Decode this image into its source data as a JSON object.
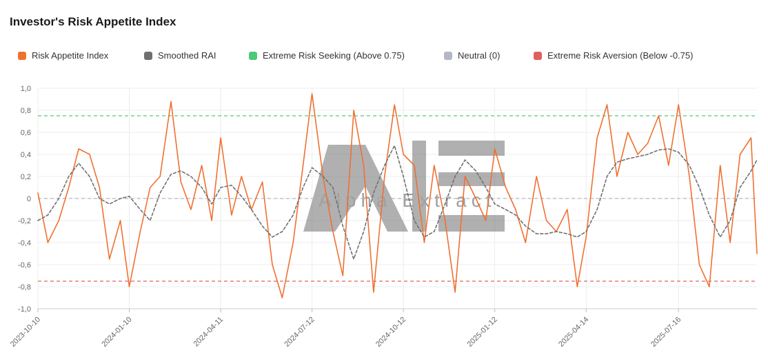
{
  "chart_data": {
    "type": "line",
    "title": "Investor's Risk Appetite Index",
    "xlabel": "",
    "ylabel": "",
    "ylim": [
      -1.0,
      1.0
    ],
    "grid": true,
    "legend_position": "top-left",
    "y_ticks": [
      "1,0",
      "0,8",
      "0,6",
      "0,4",
      "0,2",
      "0",
      "-0,2",
      "-0,4",
      "-0,6",
      "-0,8",
      "-1,0"
    ],
    "x_ticks": [
      "2023-10-10",
      "2024-01-10",
      "2024-04-11",
      "2024-07-12",
      "2024-10-12",
      "2025-01-12",
      "2025-04-14",
      "2025-07-16"
    ],
    "watermark": "Alpha Extract",
    "legend": [
      {
        "name": "Risk Appetite Index",
        "color": "#f07030"
      },
      {
        "name": "Smoothed RAI",
        "color": "#707070"
      },
      {
        "name": "Extreme Risk Seeking (Above 0.75)",
        "color": "#4cc97a"
      },
      {
        "name": "Neutral (0)",
        "color": "#b4b8c4"
      },
      {
        "name": "Extreme Risk Aversion (Below -0.75)",
        "color": "#e06060"
      }
    ],
    "thresholds": {
      "extreme_risk_seeking": 0.75,
      "neutral": 0,
      "extreme_risk_aversion": -0.75
    },
    "x": [
      "2023-10-10",
      "2023-10-20",
      "2023-10-31",
      "2023-11-10",
      "2023-11-20",
      "2023-12-01",
      "2023-12-11",
      "2023-12-21",
      "2024-01-01",
      "2024-01-10",
      "2024-01-21",
      "2024-01-31",
      "2024-02-10",
      "2024-02-21",
      "2024-03-02",
      "2024-03-12",
      "2024-03-23",
      "2024-04-02",
      "2024-04-11",
      "2024-04-22",
      "2024-05-02",
      "2024-05-12",
      "2024-05-23",
      "2024-06-02",
      "2024-06-12",
      "2024-06-23",
      "2024-07-03",
      "2024-07-12",
      "2024-07-23",
      "2024-08-02",
      "2024-08-12",
      "2024-08-23",
      "2024-09-02",
      "2024-09-12",
      "2024-09-23",
      "2024-10-03",
      "2024-10-12",
      "2024-10-23",
      "2024-11-02",
      "2024-11-12",
      "2024-11-23",
      "2024-12-03",
      "2024-12-13",
      "2024-12-24",
      "2025-01-03",
      "2025-01-12",
      "2025-01-23",
      "2025-02-02",
      "2025-02-12",
      "2025-02-23",
      "2025-03-05",
      "2025-03-15",
      "2025-03-26",
      "2025-04-05",
      "2025-04-14",
      "2025-04-25",
      "2025-05-05",
      "2025-05-15",
      "2025-05-26",
      "2025-06-05",
      "2025-06-15",
      "2025-06-26",
      "2025-07-06",
      "2025-07-16",
      "2025-07-27",
      "2025-08-06",
      "2025-08-16",
      "2025-08-27",
      "2025-09-06",
      "2025-09-16",
      "2025-09-27",
      "2025-10-03"
    ],
    "series": [
      {
        "name": "Risk Appetite Index",
        "color": "#f07030",
        "values": [
          0.05,
          -0.4,
          -0.2,
          0.1,
          0.45,
          0.4,
          0.1,
          -0.55,
          -0.2,
          -0.8,
          -0.3,
          0.1,
          0.2,
          0.88,
          0.15,
          -0.1,
          0.3,
          -0.2,
          0.55,
          -0.15,
          0.2,
          -0.1,
          0.15,
          -0.6,
          -0.9,
          -0.4,
          0.3,
          0.95,
          0.2,
          -0.3,
          -0.7,
          0.8,
          0.3,
          -0.85,
          0.2,
          0.85,
          0.4,
          0.3,
          -0.4,
          0.3,
          -0.2,
          -0.85,
          0.2,
          0.0,
          -0.2,
          0.45,
          0.1,
          -0.1,
          -0.4,
          0.2,
          -0.2,
          -0.3,
          -0.1,
          -0.8,
          -0.35,
          0.55,
          0.85,
          0.2,
          0.6,
          0.4,
          0.5,
          0.75,
          0.3,
          0.85,
          0.2,
          -0.6,
          -0.8,
          0.3,
          -0.4,
          0.4,
          0.55,
          -0.5
        ]
      },
      {
        "name": "Smoothed RAI",
        "color": "#707070",
        "values": [
          -0.2,
          -0.15,
          0.0,
          0.2,
          0.32,
          0.2,
          0.0,
          -0.05,
          0.0,
          0.02,
          -0.1,
          -0.2,
          0.05,
          0.22,
          0.25,
          0.2,
          0.1,
          -0.05,
          0.1,
          0.12,
          0.02,
          -0.1,
          -0.25,
          -0.35,
          -0.3,
          -0.15,
          0.1,
          0.28,
          0.2,
          0.1,
          -0.25,
          -0.55,
          -0.3,
          0.05,
          0.3,
          0.48,
          0.2,
          -0.2,
          -0.35,
          -0.3,
          -0.05,
          0.2,
          0.35,
          0.25,
          0.1,
          -0.05,
          -0.1,
          -0.15,
          -0.25,
          -0.32,
          -0.32,
          -0.3,
          -0.32,
          -0.35,
          -0.3,
          -0.1,
          0.2,
          0.33,
          0.36,
          0.38,
          0.4,
          0.44,
          0.45,
          0.42,
          0.3,
          0.1,
          -0.15,
          -0.35,
          -0.2,
          0.1,
          0.25,
          0.35
        ]
      }
    ]
  }
}
